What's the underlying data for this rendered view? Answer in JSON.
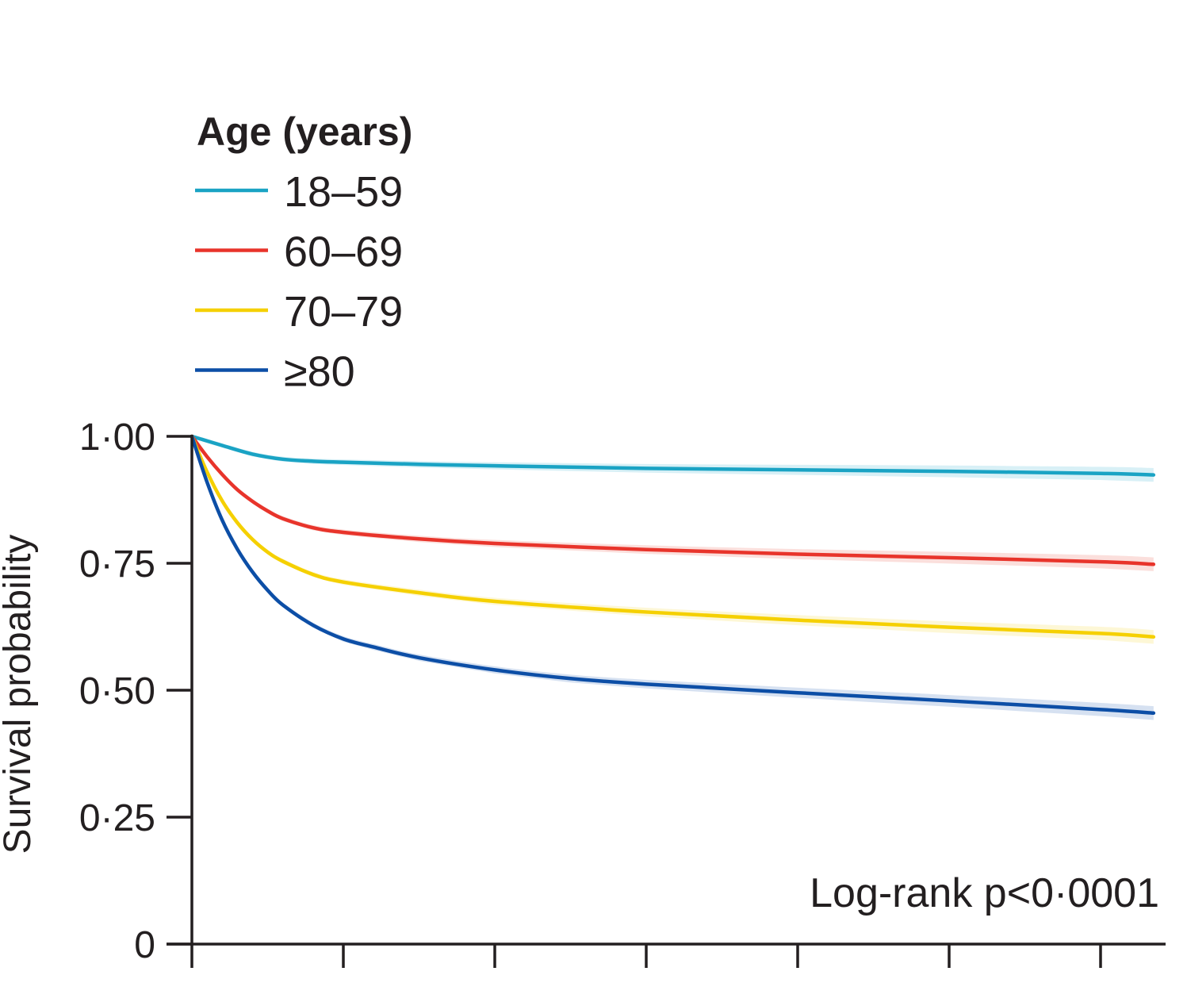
{
  "chart_data": {
    "type": "line",
    "subtype": "kaplan-meier survival curves",
    "title": "",
    "xlabel": "",
    "ylabel": "Survival probability",
    "ylim": [
      0,
      1
    ],
    "xlim": [
      0,
      6.35
    ],
    "x_ticks": [
      0,
      1,
      2,
      3,
      4,
      5,
      6
    ],
    "x_tick_labels": [
      "",
      "",
      "",
      "",
      "",
      "",
      ""
    ],
    "y_ticks": [
      0,
      0.25,
      0.5,
      0.75,
      1.0
    ],
    "y_tick_labels": [
      "0",
      "0·25",
      "0·50",
      "0·75",
      "1·00"
    ],
    "grid": false,
    "legend": {
      "title": "Age (years)",
      "position": "top-left"
    },
    "annotation": "Log-rank p<0·0001",
    "series": [
      {
        "name": "18–59",
        "color": "#1aa3c4",
        "band_color": "#8fd3e6",
        "x": [
          0,
          0.2,
          0.4,
          0.6,
          0.8,
          1.0,
          1.5,
          2.0,
          3.0,
          4.0,
          5.0,
          6.0,
          6.35
        ],
        "values": [
          1.0,
          0.982,
          0.965,
          0.955,
          0.951,
          0.949,
          0.945,
          0.942,
          0.937,
          0.934,
          0.931,
          0.927,
          0.924
        ]
      },
      {
        "name": "60–69",
        "color": "#e8342b",
        "band_color": "#f4a39b",
        "x": [
          0,
          0.1,
          0.2,
          0.3,
          0.4,
          0.5,
          0.6,
          0.8,
          1.0,
          1.5,
          2.0,
          3.0,
          4.0,
          5.0,
          6.0,
          6.35
        ],
        "values": [
          1.0,
          0.96,
          0.925,
          0.895,
          0.872,
          0.853,
          0.838,
          0.82,
          0.811,
          0.798,
          0.789,
          0.777,
          0.768,
          0.761,
          0.753,
          0.748
        ]
      },
      {
        "name": "70–79",
        "color": "#f5d000",
        "band_color": "#fae98a",
        "x": [
          0,
          0.1,
          0.2,
          0.3,
          0.4,
          0.5,
          0.6,
          0.8,
          1.0,
          1.5,
          2.0,
          3.0,
          4.0,
          5.0,
          6.0,
          6.35
        ],
        "values": [
          1.0,
          0.93,
          0.873,
          0.83,
          0.797,
          0.772,
          0.754,
          0.728,
          0.713,
          0.692,
          0.675,
          0.654,
          0.638,
          0.624,
          0.612,
          0.605
        ]
      },
      {
        "name": "≥80",
        "color": "#0c4ea6",
        "band_color": "#8aa8d8",
        "x": [
          0,
          0.1,
          0.2,
          0.3,
          0.4,
          0.5,
          0.6,
          0.8,
          1.0,
          1.2,
          1.5,
          2.0,
          2.5,
          3.0,
          4.0,
          5.0,
          6.0,
          6.35
        ],
        "values": [
          1.0,
          0.91,
          0.835,
          0.778,
          0.733,
          0.697,
          0.668,
          0.628,
          0.601,
          0.585,
          0.564,
          0.54,
          0.523,
          0.512,
          0.495,
          0.479,
          0.462,
          0.455
        ]
      }
    ]
  }
}
